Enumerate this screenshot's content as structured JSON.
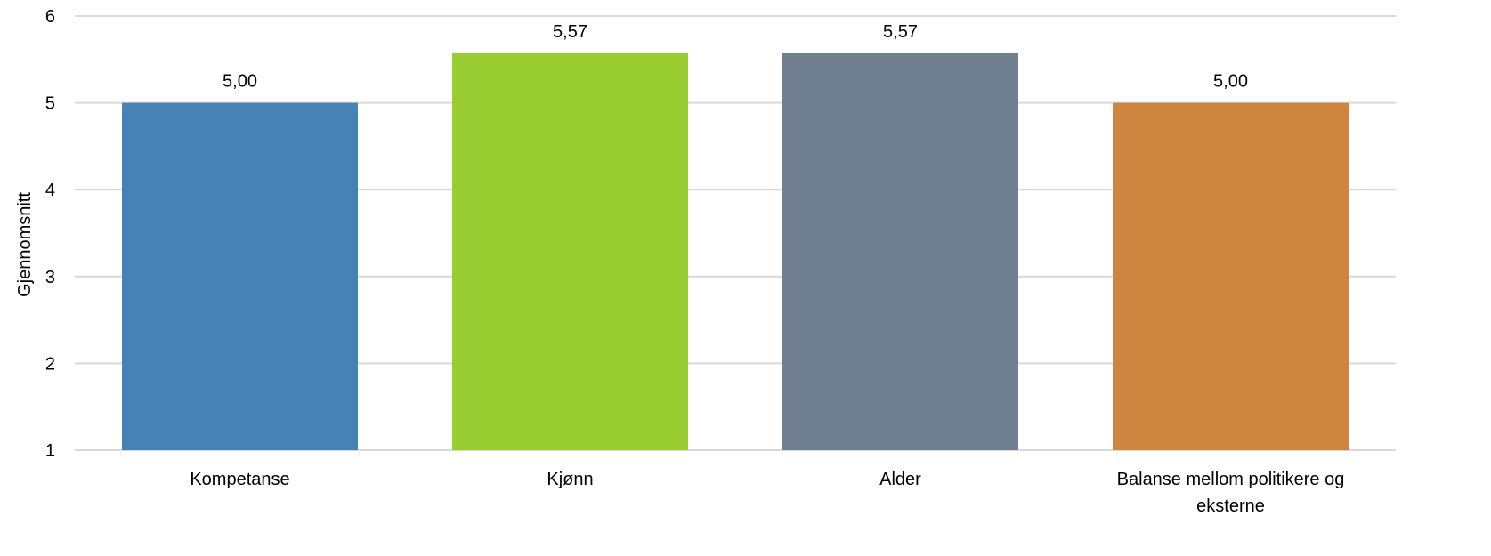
{
  "chart_data": {
    "type": "bar",
    "title": "",
    "xlabel": "",
    "ylabel": "Gjennomsnitt",
    "ylim": [
      1,
      6
    ],
    "yticks": [
      1,
      2,
      3,
      4,
      5,
      6
    ],
    "grid": true,
    "legend": "none",
    "categories": [
      [
        "Kompetanse"
      ],
      [
        "Kjønn"
      ],
      [
        "Alder"
      ],
      [
        "Balanse mellom politikere og",
        "eksterne"
      ]
    ],
    "values": [
      5.0,
      5.57,
      5.57,
      5.0
    ],
    "data_labels": [
      "5,00",
      "5,57",
      "5,57",
      "5,00"
    ],
    "colors": [
      "#4682B4",
      "#9ACD32",
      "#708090",
      "#CD853F"
    ]
  }
}
